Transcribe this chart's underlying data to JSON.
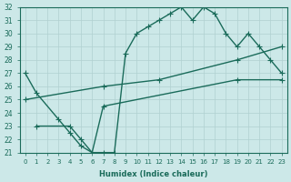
{
  "xlabel": "Humidex (Indice chaleur)",
  "ylabel": "",
  "bg_color": "#cce8e8",
  "line_color": "#1a6b5a",
  "grid_color": "#b0d0d0",
  "xlim": [
    -0.5,
    23.5
  ],
  "ylim": [
    21,
    32
  ],
  "xticks": [
    0,
    1,
    2,
    3,
    4,
    5,
    6,
    7,
    8,
    9,
    10,
    11,
    12,
    13,
    14,
    15,
    16,
    17,
    18,
    19,
    20,
    21,
    22,
    23
  ],
  "yticks": [
    21,
    22,
    23,
    24,
    25,
    26,
    27,
    28,
    29,
    30,
    31,
    32
  ],
  "line1_x": [
    0,
    1,
    3,
    4,
    5,
    6,
    7,
    8,
    9,
    10,
    11,
    12,
    13,
    14,
    15,
    16,
    17,
    18,
    19,
    20,
    21,
    22,
    23
  ],
  "line1_y": [
    27,
    25.5,
    23.5,
    22.5,
    21.5,
    21,
    21,
    21,
    28.5,
    30,
    30.5,
    31,
    31.5,
    32,
    31,
    32,
    31.5,
    30,
    29,
    30,
    29,
    28,
    27
  ],
  "line2_x": [
    0,
    7,
    12,
    19,
    23
  ],
  "line2_y": [
    25,
    26,
    26.5,
    28,
    29
  ],
  "line3_x": [
    1,
    4,
    5,
    6,
    7,
    19,
    23
  ],
  "line3_y": [
    23,
    23,
    22,
    21,
    24.5,
    26.5,
    26.5
  ],
  "marker": "+",
  "markersize": 5,
  "linewidth": 1.0
}
